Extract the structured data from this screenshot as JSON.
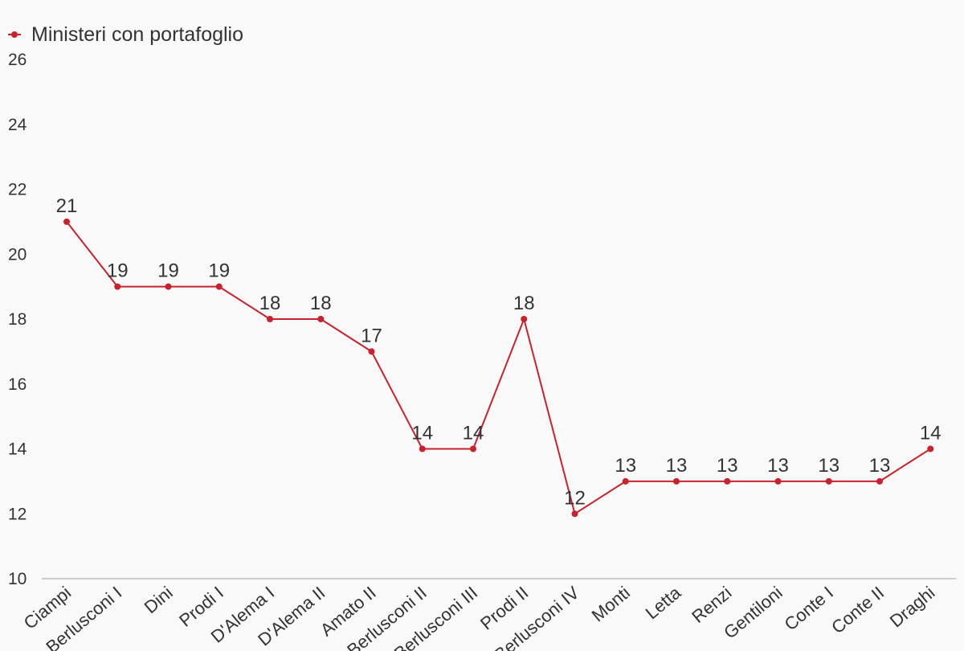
{
  "chart_data": {
    "type": "line",
    "title": "",
    "xlabel": "",
    "ylabel": "",
    "categories": [
      "Ciampi",
      "Berlusconi I",
      "Dini",
      "Prodi I",
      "D'Alema I",
      "D'Alema II",
      "Amato II",
      "Berlusconi II",
      "Berlusconi III",
      "Prodi II",
      "Berlusconi IV",
      "Monti",
      "Letta",
      "Renzi",
      "Gentiloni",
      "Conte I",
      "Conte II",
      "Draghi"
    ],
    "series": [
      {
        "name": "Ministeri con portafoglio",
        "values": [
          21,
          19,
          19,
          19,
          18,
          18,
          17,
          14,
          14,
          18,
          12,
          13,
          13,
          13,
          13,
          13,
          13,
          14
        ]
      }
    ],
    "ylim": [
      10,
      26
    ],
    "yticks": [
      10,
      12,
      14,
      16,
      18,
      20,
      22,
      24,
      26
    ],
    "grid": false,
    "legend_position": "top-left",
    "series_color": "#c8232c",
    "axis_color": "#cccccc",
    "background_color": "#f9f9f9"
  }
}
